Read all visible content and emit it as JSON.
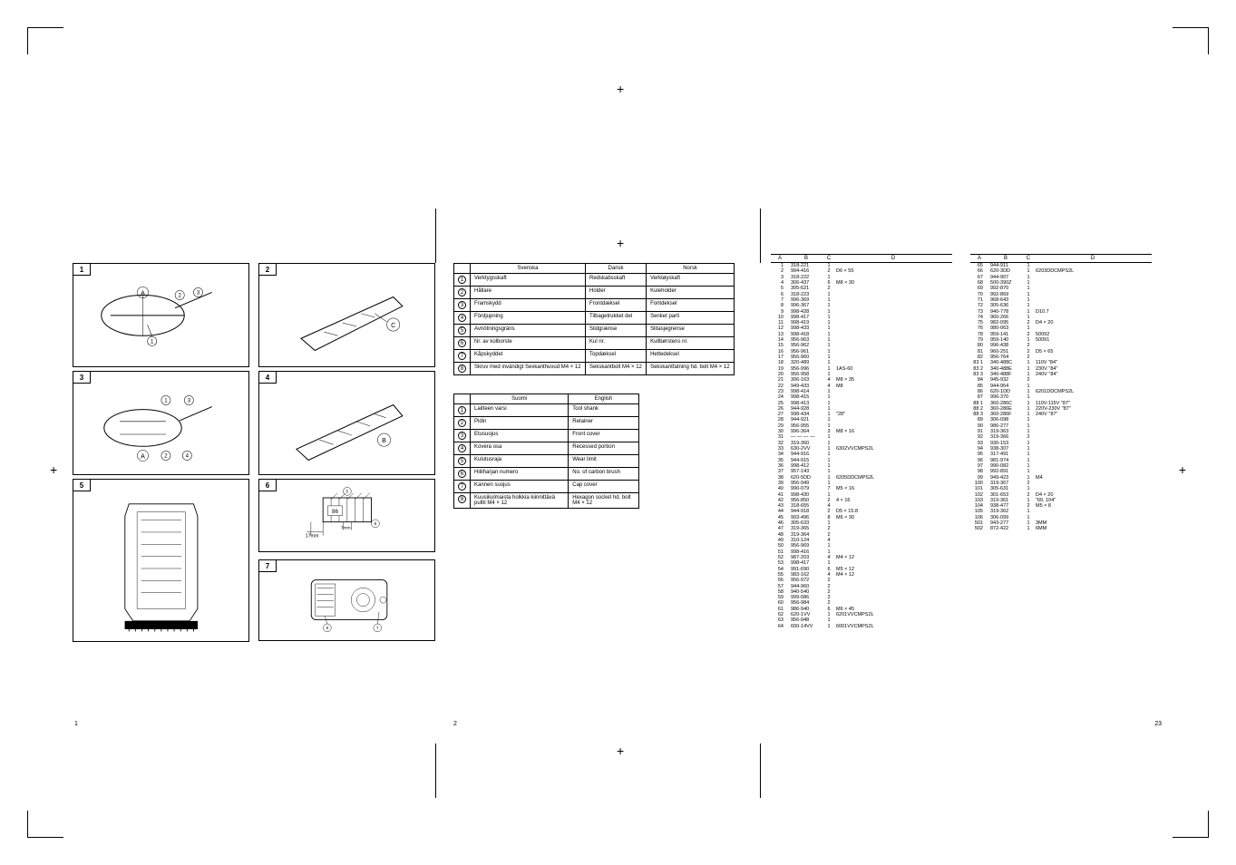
{
  "tables": {
    "t1": {
      "headers": [
        "",
        "Svenska",
        "Dansk",
        "Norsk"
      ],
      "rows": [
        [
          "1",
          "Verktygsskaft",
          "Redskabsskaft",
          "Verktøyskaft"
        ],
        [
          "2",
          "Hållare",
          "Holder",
          "Kuleholder"
        ],
        [
          "3",
          "Framskydd",
          "Frontdæksel",
          "Fontdeksel"
        ],
        [
          "4",
          "Fördjupning",
          "Tilbagetrukket del",
          "Senket parti"
        ],
        [
          "5",
          "Avnötningsgräns",
          "Slidgrænse",
          "Slitasjegrense"
        ],
        [
          "6",
          "Nr. av kolborste",
          "Kul nr.",
          "Kullbørstens nr."
        ],
        [
          "7",
          "Kåpskyddet",
          "Topdæksel",
          "Hettedeksel"
        ],
        [
          "8",
          "Skruv med invändigt Sexkanthuvud M4 × 12",
          "Sekskantbolt M4 × 12",
          "Sekskantfatning hd. bolt M4 × 12"
        ]
      ]
    },
    "t2": {
      "headers": [
        "",
        "Suomi",
        "English"
      ],
      "rows": [
        [
          "1",
          "Laitteen varsi",
          "Tool shank"
        ],
        [
          "2",
          "Pidin",
          "Retainer"
        ],
        [
          "3",
          "Etusuojus",
          "Front cover"
        ],
        [
          "4",
          "Kovera osa",
          "Recessed portion"
        ],
        [
          "5",
          "Kulutusraja",
          "Wear limit"
        ],
        [
          "6",
          "Hiiliharjan numero",
          "No. of carbon brush"
        ],
        [
          "7",
          "Kannen suojus",
          "Cap cover"
        ],
        [
          "8",
          "Kuusikulmaista holkkia kiinnittävä pultti M4 × 12",
          "Hexagon socket hd. bolt M4 × 12"
        ]
      ]
    }
  },
  "parts": {
    "headers": [
      "A",
      "B",
      "C",
      "D"
    ],
    "left": [
      [
        "1",
        "318-221",
        "1",
        ""
      ],
      [
        "2",
        "994-416",
        "2",
        "D6 × 55"
      ],
      [
        "3",
        "318-222",
        "1",
        ""
      ],
      [
        "4",
        "306-437",
        "6",
        "M8 × 30"
      ],
      [
        "5",
        "305-621",
        "2",
        ""
      ],
      [
        "6",
        "318-223",
        "1",
        ""
      ],
      [
        "7",
        "996-369",
        "1",
        ""
      ],
      [
        "8",
        "996-367",
        "1",
        ""
      ],
      [
        "9",
        "998-428",
        "1",
        ""
      ],
      [
        "10",
        "998-417",
        "1",
        ""
      ],
      [
        "11",
        "998-419",
        "1",
        ""
      ],
      [
        "12",
        "998-433",
        "1",
        ""
      ],
      [
        "13",
        "998-418",
        "1",
        ""
      ],
      [
        "14",
        "956-963",
        "1",
        ""
      ],
      [
        "15",
        "956-962",
        "1",
        ""
      ],
      [
        "16",
        "956-961",
        "1",
        ""
      ],
      [
        "17",
        "956-960",
        "1",
        ""
      ],
      [
        "18",
        "320-489",
        "1",
        ""
      ],
      [
        "19",
        "956-996",
        "1",
        "1AS-60"
      ],
      [
        "20",
        "956-958",
        "1",
        ""
      ],
      [
        "21",
        "306-163",
        "4",
        "M8 × 35"
      ],
      [
        "22",
        "949-433",
        "4",
        "M8"
      ],
      [
        "23",
        "998-414",
        "1",
        ""
      ],
      [
        "24",
        "998-415",
        "1",
        ""
      ],
      [
        "25",
        "998-413",
        "1",
        ""
      ],
      [
        "26",
        "944-928",
        "1",
        ""
      ],
      [
        "27",
        "998-434",
        "1",
        "\"28\""
      ],
      [
        "28",
        "944-921",
        "1",
        ""
      ],
      [
        "29",
        "956-955",
        "1",
        ""
      ],
      [
        "30",
        "996-364",
        "3",
        "M8 × 16"
      ],
      [
        "31",
        "— — — —",
        "1",
        ""
      ],
      [
        "32",
        "319-360",
        "1",
        ""
      ],
      [
        "33",
        "630-2VV",
        "1",
        "6302VVCMPS2L"
      ],
      [
        "34",
        "944-916",
        "1",
        ""
      ],
      [
        "35",
        "944-915",
        "1",
        ""
      ],
      [
        "36",
        "998-412",
        "1",
        ""
      ],
      [
        "37",
        "957-143",
        "1",
        ""
      ],
      [
        "38",
        "620-5DD",
        "1",
        "6205DDCMPS2L"
      ],
      [
        "39",
        "956-949",
        "1",
        ""
      ],
      [
        "40",
        "990-079",
        "7",
        "M5 × 16"
      ],
      [
        "41",
        "998-430",
        "1",
        ""
      ],
      [
        "42",
        "956-850",
        "2",
        "4 × 16"
      ],
      [
        "43",
        "318-655",
        "4",
        ""
      ],
      [
        "44",
        "944-918",
        "2",
        "D5 × 15.8"
      ],
      [
        "45",
        "993-496",
        "8",
        "M6 × 30"
      ],
      [
        "46",
        "305-633",
        "1",
        ""
      ],
      [
        "47",
        "319-365",
        "2",
        ""
      ],
      [
        "48",
        "319-364",
        "2",
        ""
      ],
      [
        "49",
        "310-124",
        "4",
        ""
      ],
      [
        "50",
        "956-969",
        "1",
        ""
      ],
      [
        "51",
        "998-416",
        "1",
        ""
      ],
      [
        "52",
        "987-203",
        "4",
        "M4 × 12"
      ],
      [
        "53",
        "998-417",
        "1",
        ""
      ],
      [
        "54",
        "991-690",
        "6",
        "M5 × 12"
      ],
      [
        "55",
        "983-162",
        "4",
        "M4 × 12"
      ],
      [
        "56",
        "956-972",
        "2",
        ""
      ],
      [
        "57",
        "944-960",
        "2",
        ""
      ],
      [
        "58",
        "940-540",
        "2",
        ""
      ],
      [
        "59",
        "999-086",
        "2",
        ""
      ],
      [
        "60",
        "956-984",
        "2",
        ""
      ],
      [
        "61",
        "986-940",
        "6",
        "M6 × 45"
      ],
      [
        "62",
        "620-1VV",
        "1",
        "6201VVCMPS2L"
      ],
      [
        "63",
        "956-948",
        "1",
        ""
      ],
      [
        "64",
        "600-14VV",
        "1",
        "6001VVCMPS2L"
      ]
    ],
    "right": [
      [
        "65",
        "944-911",
        "1",
        ""
      ],
      [
        "66",
        "620-3DD",
        "1",
        "6203DDCMPS2L"
      ],
      [
        "67",
        "944-907",
        "1",
        ""
      ],
      [
        "68",
        "500-390Z",
        "1",
        ""
      ],
      [
        "69",
        "992-870",
        "1",
        ""
      ],
      [
        "70",
        "992-869",
        "1",
        ""
      ],
      [
        "71",
        "968-643",
        "1",
        ""
      ],
      [
        "72",
        "305-636",
        "1",
        ""
      ],
      [
        "73",
        "940-778",
        "1",
        "D10.7"
      ],
      [
        "74",
        "960-266",
        "1",
        ""
      ],
      [
        "75",
        "982-095",
        "2",
        "D4 × 20"
      ],
      [
        "76",
        "980-063",
        "1",
        ""
      ],
      [
        "78",
        "959-141",
        "2",
        "50092"
      ],
      [
        "79",
        "959-140",
        "1",
        "50091"
      ],
      [
        "80",
        "996-438",
        "2",
        ""
      ],
      [
        "81",
        "960-251",
        "2",
        "D5 × 65"
      ],
      [
        "82",
        "956-764",
        "2",
        ""
      ],
      [
        "83 1",
        "340-488C",
        "1",
        "110V \"84\""
      ],
      [
        "83 2",
        "340-488E",
        "1",
        "230V \"84\""
      ],
      [
        "83 3",
        "340-488F",
        "1",
        "240V \"84\""
      ],
      [
        "84",
        "945-932",
        "2",
        ""
      ],
      [
        "85",
        "944-954",
        "1",
        ""
      ],
      [
        "86",
        "620-1DD",
        "1",
        "6201DDCMPS2L"
      ],
      [
        "87",
        "996-370",
        "1",
        ""
      ],
      [
        "88 1",
        "360-286C",
        "1",
        "110V-115V \"87\""
      ],
      [
        "88 2",
        "360-286E",
        "1",
        "220V-230V \"87\""
      ],
      [
        "88 3",
        "360-286F",
        "1",
        "240V \"87\""
      ],
      [
        "89",
        "306-098",
        "1",
        ""
      ],
      [
        "90",
        "986-277",
        "1",
        ""
      ],
      [
        "91",
        "319-363",
        "1",
        ""
      ],
      [
        "92",
        "319-366",
        "2",
        ""
      ],
      [
        "93",
        "930-153",
        "1",
        ""
      ],
      [
        "94",
        "938-307",
        "1",
        ""
      ],
      [
        "95",
        "317-491",
        "1",
        ""
      ],
      [
        "96",
        "981-974",
        "1",
        ""
      ],
      [
        "97",
        "990-082",
        "1",
        ""
      ],
      [
        "98",
        "992-891",
        "1",
        ""
      ],
      [
        "99",
        "949-423",
        "1",
        "M4"
      ],
      [
        "100",
        "319-367",
        "2",
        ""
      ],
      [
        "101",
        "305-631",
        "1",
        ""
      ],
      [
        "102",
        "301-653",
        "2",
        "D4 × 20"
      ],
      [
        "103",
        "319-361",
        "1",
        "\"60, 104\""
      ],
      [
        "104",
        "938-477",
        "2",
        "M5 × 8"
      ],
      [
        "105",
        "319-362",
        "1",
        ""
      ],
      [
        "106",
        "306-099",
        "1",
        ""
      ],
      [
        "501",
        "943-277",
        "1",
        "3MM"
      ],
      [
        "502",
        "872-422",
        "1",
        "6MM"
      ]
    ]
  },
  "fig6": {
    "label86": "86",
    "dim17": "17mm",
    "dim7": "7mm"
  },
  "pagenums": {
    "p1": "1",
    "p2": "2",
    "p23": "23"
  }
}
